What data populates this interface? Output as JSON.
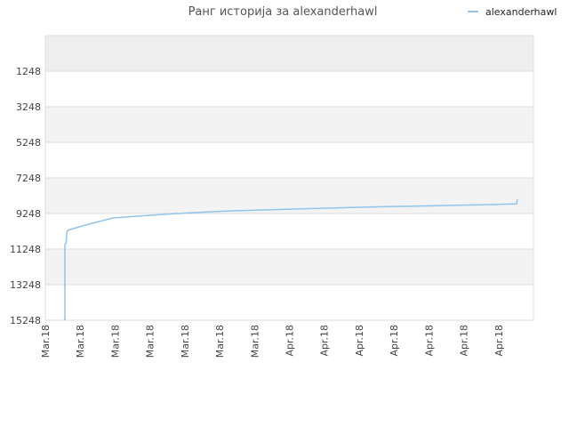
{
  "chart_data": {
    "type": "line",
    "title": "Ранг историја за alexanderhawl",
    "series": [
      {
        "name": "alexanderhawl",
        "color": "#90c4ec",
        "points": [
          [
            0.0,
            15248
          ],
          [
            0.0,
            11000
          ],
          [
            0.003,
            10900
          ],
          [
            0.004,
            10400
          ],
          [
            0.006,
            10200
          ],
          [
            0.018,
            10100
          ],
          [
            0.06,
            9800
          ],
          [
            0.106,
            9500
          ],
          [
            0.17,
            9380
          ],
          [
            0.24,
            9260
          ],
          [
            0.3,
            9180
          ],
          [
            0.37,
            9100
          ],
          [
            0.44,
            9050
          ],
          [
            0.52,
            8990
          ],
          [
            0.62,
            8920
          ],
          [
            0.7,
            8870
          ],
          [
            0.78,
            8830
          ],
          [
            0.86,
            8790
          ],
          [
            0.94,
            8750
          ],
          [
            0.99,
            8710
          ],
          [
            0.996,
            8700
          ],
          [
            0.998,
            8450
          ]
        ]
      }
    ],
    "x_tick_labels": [
      "Mar.18",
      "Mar.18",
      "Mar.18",
      "Mar.18",
      "Mar.18",
      "Mar.18",
      "Mar.18",
      "Apr.18",
      "Apr.18",
      "Apr.18",
      "Apr.18",
      "Apr.18",
      "Apr.18",
      "Apr.18"
    ],
    "y_ticks": [
      1248,
      3248,
      5248,
      7248,
      9248,
      11248,
      13248,
      15248
    ],
    "ylim": [
      15248,
      -752
    ],
    "y_reversed": true,
    "grid": true,
    "legend_position": "top-right"
  }
}
